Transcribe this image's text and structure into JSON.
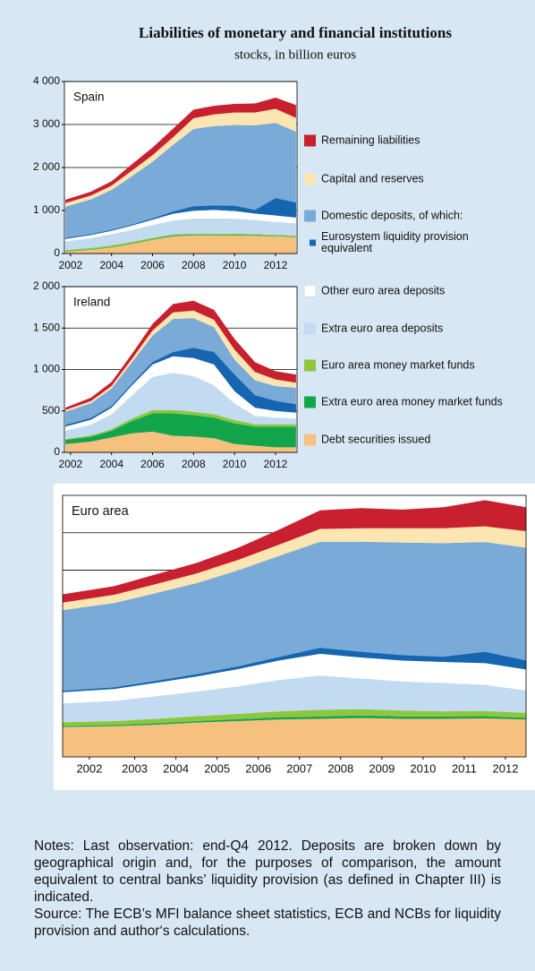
{
  "title": "Liabilities of monetary and financial institutions",
  "subtitle": "stocks, in billion euros",
  "legend": [
    {
      "name": "Remaining liabilities",
      "color": "#c8202f"
    },
    {
      "name": "Capital and reserves",
      "color": "#fbe6b2"
    },
    {
      "name": "Domestic deposits, of which:",
      "color": "#7aaad8"
    },
    {
      "name": "Eurosystem liquidity provision equivalent",
      "color": "#1565b0",
      "part_of": 2
    },
    {
      "name": "Other euro area deposits",
      "color": "#ffffff"
    },
    {
      "name": "Extra euro area deposits",
      "color": "#c3dbf0"
    },
    {
      "name": "Euro area money market funds",
      "color": "#8dc63f"
    },
    {
      "name": "Extra euro area money market funds",
      "color": "#13a54b"
    },
    {
      "name": "Debt securities issued",
      "color": "#f6c17f"
    }
  ],
  "chart_data": [
    {
      "type": "area",
      "title": "Spain",
      "x": [
        2001.75,
        2003,
        2004,
        2005,
        2006,
        2007,
        2008,
        2009,
        2010,
        2011,
        2012,
        2013
      ],
      "xlim": [
        2001.7,
        2013.05
      ],
      "xticks": [
        2002,
        2004,
        2006,
        2008,
        2010,
        2012
      ],
      "ylim": [
        0,
        4000
      ],
      "yticks": [
        0,
        {
          "value": 1000,
          "label": "1 000"
        },
        {
          "value": 2000,
          "label": "2 000"
        },
        {
          "value": 3000,
          "label": "3 000"
        },
        {
          "value": 4000,
          "label": "4 000"
        }
      ],
      "grid": true,
      "series": [
        {
          "values": [
            80,
            90,
            100,
            150,
            180,
            200,
            200,
            200,
            200,
            210,
            260,
            300
          ]
        },
        {
          "values": [
            80,
            90,
            100,
            130,
            150,
            180,
            250,
            270,
            290,
            300,
            330,
            320
          ]
        },
        {
          "values": [
            750,
            830,
            950,
            1150,
            1350,
            1600,
            1900,
            1950,
            2000,
            2050,
            2150,
            2000
          ]
        },
        {
          "values": [
            20,
            20,
            20,
            20,
            30,
            50,
            100,
            100,
            120,
            80,
            400,
            350
          ]
        },
        {
          "values": [
            60,
            70,
            80,
            100,
            120,
            160,
            180,
            200,
            180,
            150,
            150,
            130
          ]
        },
        {
          "values": [
            200,
            230,
            260,
            280,
            300,
            320,
            350,
            350,
            350,
            330,
            300,
            290
          ]
        },
        {
          "values": [
            30,
            30,
            35,
            35,
            30,
            25,
            25,
            25,
            20,
            20,
            20,
            20
          ]
        },
        {
          "values": [
            10,
            10,
            15,
            15,
            15,
            20,
            20,
            20,
            20,
            20,
            15,
            15
          ]
        },
        {
          "values": [
            40,
            90,
            140,
            220,
            320,
            400,
            420,
            420,
            420,
            410,
            400,
            380
          ]
        }
      ]
    },
    {
      "type": "area",
      "title": "Ireland",
      "x": [
        2001.75,
        2003,
        2004,
        2005,
        2006,
        2007,
        2008,
        2009,
        2010,
        2011,
        2012,
        2013
      ],
      "xlim": [
        2001.7,
        2013.05
      ],
      "xticks": [
        2002,
        2004,
        2006,
        2008,
        2010,
        2012
      ],
      "ylim": [
        0,
        2000
      ],
      "yticks": [
        0,
        500,
        {
          "value": 1000,
          "label": "1 000"
        },
        {
          "value": 1500,
          "label": "1 500"
        },
        {
          "value": 2000,
          "label": "2 000"
        }
      ],
      "grid": true,
      "series": [
        {
          "values": [
            30,
            40,
            50,
            60,
            80,
            100,
            120,
            120,
            130,
            120,
            100,
            100
          ]
        },
        {
          "values": [
            20,
            25,
            30,
            40,
            60,
            80,
            90,
            90,
            120,
            100,
            80,
            60
          ]
        },
        {
          "values": [
            180,
            200,
            230,
            280,
            350,
            450,
            480,
            450,
            380,
            330,
            300,
            300
          ]
        },
        {
          "values": [
            20,
            20,
            20,
            20,
            30,
            50,
            120,
            150,
            200,
            150,
            120,
            100
          ]
        },
        {
          "values": [
            50,
            60,
            80,
            120,
            150,
            200,
            220,
            250,
            150,
            100,
            80,
            70
          ]
        },
        {
          "values": [
            100,
            130,
            180,
            280,
            400,
            450,
            430,
            350,
            200,
            100,
            80,
            70
          ]
        },
        {
          "values": [
            10,
            15,
            20,
            30,
            40,
            40,
            40,
            40,
            40,
            30,
            30,
            30
          ]
        },
        {
          "values": [
            50,
            60,
            80,
            150,
            220,
            270,
            260,
            250,
            250,
            230,
            250,
            250
          ]
        },
        {
          "values": [
            100,
            130,
            180,
            230,
            250,
            200,
            190,
            170,
            100,
            80,
            60,
            60
          ]
        }
      ]
    },
    {
      "type": "area",
      "title": "Euro area",
      "x": [
        2001.75,
        2003,
        2004,
        2005,
        2006,
        2007,
        2008,
        2009,
        2010,
        2011,
        2012,
        2013
      ],
      "xlim": [
        2001.75,
        2013
      ],
      "xticks": [
        {
          "value": 2002.4,
          "label": "2002"
        },
        {
          "value": 2003.5,
          "label": "2003"
        },
        {
          "value": 2004.5,
          "label": "2004"
        },
        {
          "value": 2005.5,
          "label": "2005"
        },
        {
          "value": 2006.5,
          "label": "2006"
        },
        {
          "value": 2007.5,
          "label": "2007"
        },
        {
          "value": 2008.5,
          "label": "2008"
        },
        {
          "value": 2009.5,
          "label": "2009"
        },
        {
          "value": 2010.5,
          "label": "2010"
        },
        {
          "value": 2011.5,
          "label": "2011"
        },
        {
          "value": 2012.5,
          "label": "2012"
        }
      ],
      "ylim": [
        0,
        35000
      ],
      "gridlines": [
        20000,
        25000,
        30000
      ],
      "grid": true,
      "series": [
        {
          "values": [
            1100,
            1150,
            1300,
            1400,
            1600,
            2000,
            2500,
            2700,
            2500,
            2800,
            3500,
            3200
          ]
        },
        {
          "values": [
            1000,
            1100,
            1200,
            1300,
            1400,
            1500,
            1700,
            1800,
            1900,
            2000,
            2100,
            2200
          ]
        },
        {
          "values": [
            11000,
            11500,
            12000,
            12500,
            13200,
            14000,
            15000,
            15500,
            15800,
            15900,
            16200,
            16300
          ]
        },
        {
          "values": [
            200,
            200,
            250,
            300,
            350,
            450,
            800,
            750,
            700,
            700,
            1500,
            1200
          ]
        },
        {
          "values": [
            1500,
            1600,
            1800,
            2000,
            2300,
            2600,
            2900,
            2800,
            2800,
            2800,
            2900,
            2800
          ]
        },
        {
          "values": [
            2500,
            2700,
            3000,
            3300,
            3700,
            4200,
            4600,
            4100,
            3900,
            3800,
            3500,
            3000
          ]
        },
        {
          "values": [
            500,
            550,
            600,
            650,
            700,
            800,
            900,
            850,
            800,
            700,
            700,
            650
          ]
        },
        {
          "values": [
            150,
            150,
            200,
            200,
            250,
            300,
            300,
            350,
            300,
            300,
            300,
            250
          ]
        },
        {
          "values": [
            4000,
            4100,
            4300,
            4600,
            4800,
            5000,
            5100,
            5200,
            5100,
            5100,
            5150,
            5000
          ]
        }
      ]
    }
  ],
  "notes": [
    "Notes: Last observation: end-Q4 2012. Deposits are broken down by geographical origin and, for the purposes of comparison, the amount equivalent to central banks’ liquidity provision (as defined in Chapter III) is indicated.",
    "Source: The ECB’s MFI balance sheet statistics, ECB and NCBs for liquidity provision and author‘s calculations."
  ]
}
